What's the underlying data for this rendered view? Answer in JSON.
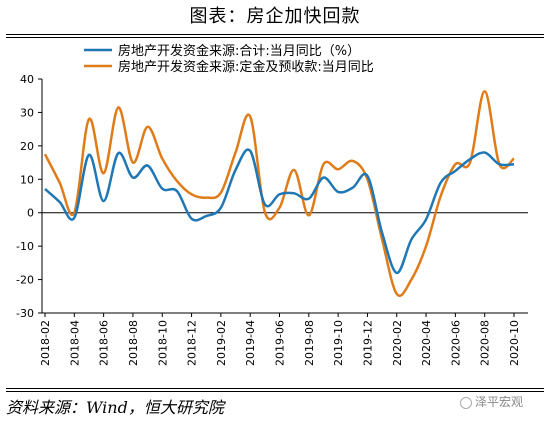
{
  "header": {
    "title": "图表：房企加快回款"
  },
  "footer": {
    "source": "资料来源：Wind，恒大研究院",
    "watermark": "泽平宏观"
  },
  "chart_data": {
    "type": "line",
    "ylim": [
      -30,
      40
    ],
    "yticks": [
      40,
      30,
      20,
      10,
      0,
      -10,
      -20,
      -30
    ],
    "x_tick_labels": [
      "2018-02",
      "2018-04",
      "2018-06",
      "2018-08",
      "2018-10",
      "2018-12",
      "2019-02",
      "2019-04",
      "2019-06",
      "2019-08",
      "2019-10",
      "2019-12",
      "2020-02",
      "2020-04",
      "2020-06",
      "2020-08",
      "2020-10"
    ],
    "x_start": "2018-02",
    "legend_position": "top",
    "series": [
      {
        "name": "房地产开发资金来源:合计:当月同比（%）",
        "color": "#1f77b4",
        "points": [
          [
            "2018-02",
            7.1
          ],
          [
            "2018-03",
            3.2
          ],
          [
            "2018-04",
            -1.5
          ],
          [
            "2018-05",
            17.3
          ],
          [
            "2018-06",
            3.5
          ],
          [
            "2018-07",
            17.8
          ],
          [
            "2018-08",
            10.5
          ],
          [
            "2018-09",
            14.1
          ],
          [
            "2018-10",
            7.2
          ],
          [
            "2018-11",
            6.5
          ],
          [
            "2018-12",
            -1.8
          ],
          [
            "2019-01",
            -1.0
          ],
          [
            "2019-02",
            1.5
          ],
          [
            "2019-03",
            12.8
          ],
          [
            "2019-04",
            18.5
          ],
          [
            "2019-05",
            2.5
          ],
          [
            "2019-06",
            5.5
          ],
          [
            "2019-07",
            5.8
          ],
          [
            "2019-08",
            4.2
          ],
          [
            "2019-09",
            10.5
          ],
          [
            "2019-10",
            6.2
          ],
          [
            "2019-11",
            7.5
          ],
          [
            "2019-12",
            11.0
          ],
          [
            "2020-01",
            -6.0
          ],
          [
            "2020-02",
            -18.0
          ],
          [
            "2020-03",
            -8.0
          ],
          [
            "2020-04",
            -2.0
          ],
          [
            "2020-05",
            9.0
          ],
          [
            "2020-06",
            12.5
          ],
          [
            "2020-07",
            16.0
          ],
          [
            "2020-08",
            18.0
          ],
          [
            "2020-09",
            14.5
          ],
          [
            "2020-10",
            14.5
          ]
        ]
      },
      {
        "name": "房地产开发资金来源:定金及预收款:当月同比",
        "color": "#e07b1a",
        "points": [
          [
            "2018-02",
            17.5
          ],
          [
            "2018-03",
            9.0
          ],
          [
            "2018-04",
            0.0
          ],
          [
            "2018-05",
            28.0
          ],
          [
            "2018-06",
            11.8
          ],
          [
            "2018-07",
            31.5
          ],
          [
            "2018-08",
            15.0
          ],
          [
            "2018-09",
            25.7
          ],
          [
            "2018-10",
            16.2
          ],
          [
            "2018-11",
            9.5
          ],
          [
            "2018-12",
            5.5
          ],
          [
            "2019-01",
            4.5
          ],
          [
            "2019-02",
            6.0
          ],
          [
            "2019-03",
            18.0
          ],
          [
            "2019-04",
            28.8
          ],
          [
            "2019-05",
            0.2
          ],
          [
            "2019-06",
            1.5
          ],
          [
            "2019-07",
            12.8
          ],
          [
            "2019-08",
            -0.8
          ],
          [
            "2019-09",
            14.5
          ],
          [
            "2019-10",
            13.0
          ],
          [
            "2019-11",
            15.5
          ],
          [
            "2019-12",
            10.0
          ],
          [
            "2020-01",
            -8.0
          ],
          [
            "2020-02",
            -24.3
          ],
          [
            "2020-03",
            -20.0
          ],
          [
            "2020-04",
            -10.0
          ],
          [
            "2020-05",
            5.0
          ],
          [
            "2020-06",
            14.5
          ],
          [
            "2020-07",
            15.0
          ],
          [
            "2020-08",
            36.3
          ],
          [
            "2020-09",
            14.5
          ],
          [
            "2020-10",
            16.2
          ]
        ]
      }
    ]
  }
}
